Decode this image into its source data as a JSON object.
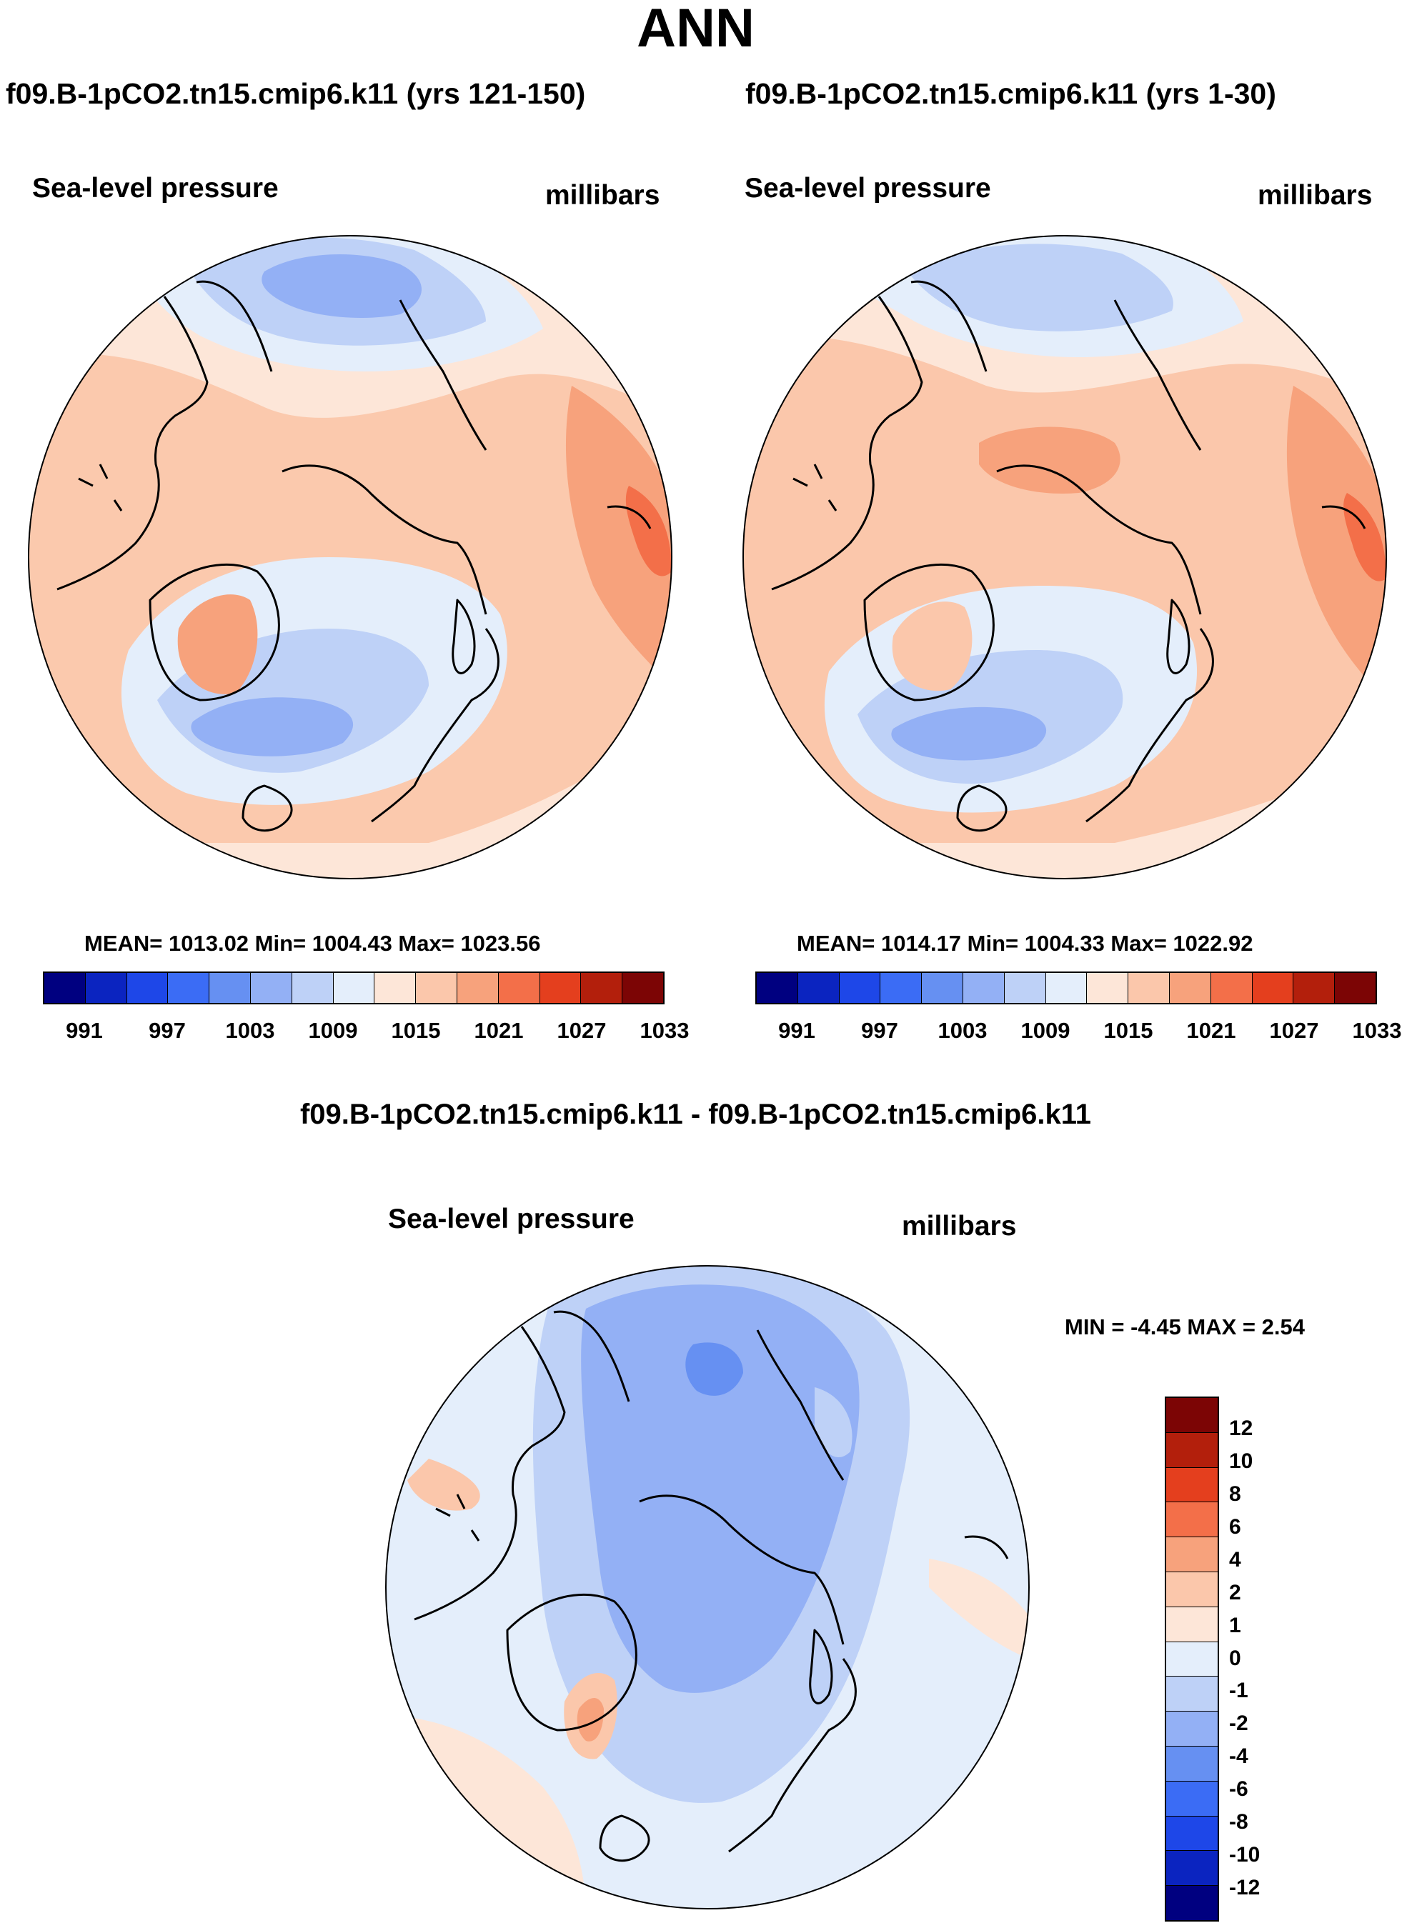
{
  "title": "ANN",
  "colors": {
    "abs_scale": [
      "#000080",
      "#0b24c0",
      "#1e47e8",
      "#3b6cf5",
      "#6690f2",
      "#93b0f5",
      "#bed1f7",
      "#e4eefb",
      "#fde6d8",
      "#fbc7ab",
      "#f7a27c",
      "#f36f49",
      "#e43f1e",
      "#b31f0c",
      "#7c0505"
    ],
    "diff_scale": [
      "#7c0505",
      "#b31f0c",
      "#e43f1e",
      "#f36f49",
      "#f7a27c",
      "#fbc7ab",
      "#fde6d8",
      "#e4eefb",
      "#bed1f7",
      "#93b0f5",
      "#6690f2",
      "#3b6cf5",
      "#1e47e8",
      "#0b24c0",
      "#000080"
    ]
  },
  "panels": {
    "left": {
      "case_title": "f09.B-1pCO2.tn15.cmip6.k11 (yrs 121-150)",
      "variable": "Sea-level pressure",
      "units": "millibars",
      "stats": "MEAN= 1013.02  Min= 1004.43  Max= 1023.56",
      "scale_ticks": [
        "991",
        "997",
        "1003",
        "1009",
        "1015",
        "1021",
        "1027",
        "1033"
      ]
    },
    "right": {
      "case_title": "f09.B-1pCO2.tn15.cmip6.k11 (yrs 1-30)",
      "variable": "Sea-level pressure",
      "units": "millibars",
      "stats": "MEAN= 1014.17  Min= 1004.33  Max= 1022.92",
      "scale_ticks": [
        "991",
        "997",
        "1003",
        "1009",
        "1015",
        "1021",
        "1027",
        "1033"
      ]
    },
    "diff": {
      "case_title": "f09.B-1pCO2.tn15.cmip6.k11 - f09.B-1pCO2.tn15.cmip6.k11",
      "variable": "Sea-level pressure",
      "units": "millibars",
      "stats": "MIN =  -4.45 MAX =   2.54",
      "scale_ticks": [
        "12",
        "10",
        "8",
        "6",
        "4",
        "2",
        "1",
        "0",
        "-1",
        "-2",
        "-4",
        "-6",
        "-8",
        "-10",
        "-12"
      ]
    }
  }
}
